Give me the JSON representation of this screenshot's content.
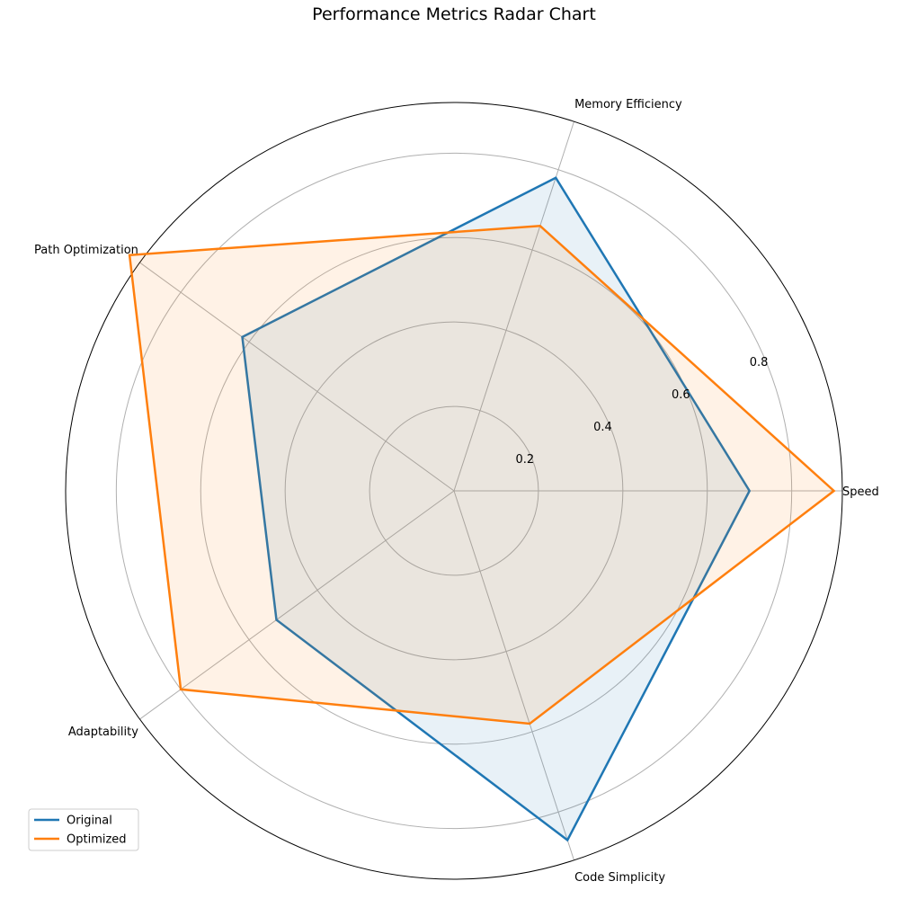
{
  "chart_data": {
    "type": "radar",
    "title": "Performance Metrics Radar Chart",
    "axes": [
      "Speed",
      "Memory Efficiency",
      "Path Optimization",
      "Adaptability",
      "Code Simplicity"
    ],
    "rlim": [
      0,
      0.92
    ],
    "rticks": [
      0.2,
      0.4,
      0.6,
      0.8
    ],
    "rtick_labels": [
      "0.2",
      "0.4",
      "0.6",
      "0.8"
    ],
    "grid": true,
    "legend": "lower-left",
    "series": [
      {
        "name": "Original",
        "values": [
          0.7,
          0.78,
          0.62,
          0.52,
          0.87
        ],
        "color": "#1f77b4",
        "fill": "#1f77b4"
      },
      {
        "name": "Optimized",
        "values": [
          0.9,
          0.66,
          0.95,
          0.8,
          0.58
        ],
        "color": "#ff7f0e",
        "fill": "#ff7f0e"
      }
    ]
  }
}
